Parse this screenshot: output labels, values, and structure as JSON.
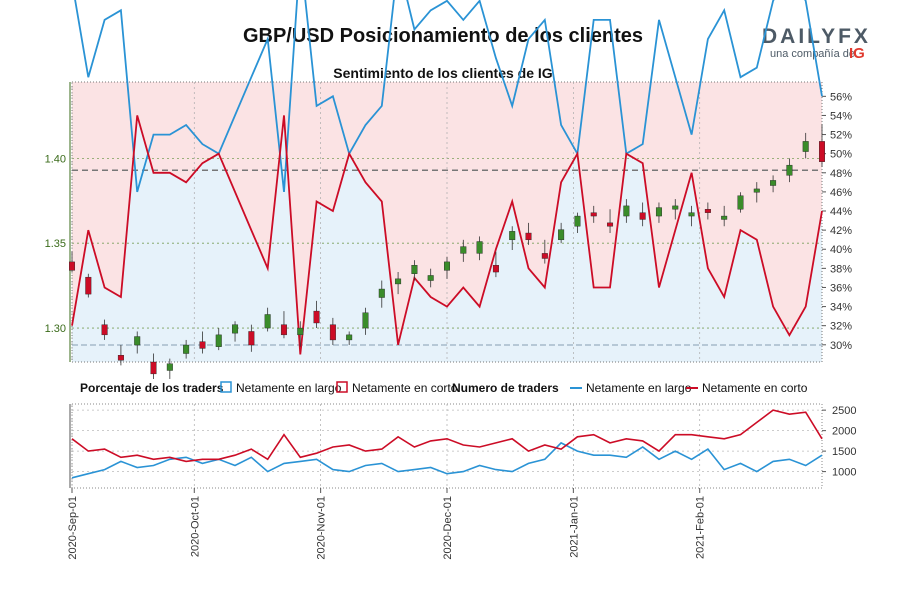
{
  "header": {
    "title": "GBP/USD Posicionamiento de los clientes",
    "logo_text": "DAILYFX",
    "logo_sub": "una compañía de",
    "logo_ig": "IG"
  },
  "colors": {
    "long": "#2a93d5",
    "short": "#cc0c26",
    "long_fill": "#e6f2fa",
    "short_fill": "#fbe3e4",
    "candle_up": "#3a8c2a",
    "candle_down": "#cc0c26",
    "price_axis": "#3a6b1a"
  },
  "chart_data": [
    {
      "type": "line",
      "title": "Sentimiento de los clientes de IG",
      "price_axis_ticks": [
        "1.30",
        "1.35",
        "1.40"
      ],
      "price_ylim": [
        1.28,
        1.445
      ],
      "pct_axis_ticks": [
        "30%",
        "32%",
        "34%",
        "36%",
        "38%",
        "40%",
        "42%",
        "44%",
        "46%",
        "48%",
        "50%",
        "52%",
        "54%",
        "56%"
      ],
      "pct_ylim": [
        28.2,
        57.5
      ],
      "reference_lines": {
        "price_upper": 1.393,
        "price_lower": 1.29
      },
      "x": [
        "2020-09-01",
        "2020-09-05",
        "2020-09-08",
        "2020-09-12",
        "2020-09-16",
        "2020-09-20",
        "2020-09-24",
        "2020-09-28",
        "2020-10-01",
        "2020-10-05",
        "2020-10-09",
        "2020-10-13",
        "2020-10-17",
        "2020-10-21",
        "2020-10-25",
        "2020-10-29",
        "2020-11-01",
        "2020-11-05",
        "2020-11-09",
        "2020-11-13",
        "2020-11-17",
        "2020-11-21",
        "2020-11-25",
        "2020-11-29",
        "2020-12-01",
        "2020-12-05",
        "2020-12-09",
        "2020-12-13",
        "2020-12-17",
        "2020-12-21",
        "2020-12-25",
        "2020-12-29",
        "2021-01-01",
        "2021-01-05",
        "2021-01-09",
        "2021-01-13",
        "2021-01-17",
        "2021-01-21",
        "2021-01-25",
        "2021-01-29",
        "2021-02-01",
        "2021-02-05",
        "2021-02-09",
        "2021-02-13",
        "2021-02-17",
        "2021-02-21",
        "2021-02-25"
      ],
      "series": [
        {
          "name": "Netamente en corto",
          "values": [
            32,
            42,
            36,
            35,
            54,
            48,
            48,
            47,
            49,
            50,
            46,
            42,
            38,
            54,
            29,
            45,
            44,
            50,
            47,
            45,
            30,
            37,
            35,
            34,
            36,
            34,
            40,
            45,
            38,
            36,
            47,
            50,
            36,
            36,
            50,
            49,
            36,
            42,
            48,
            38,
            35,
            42,
            41,
            34,
            31,
            34,
            44
          ]
        },
        {
          "name": "Netamente en largo",
          "values": [
            68,
            58,
            64,
            65,
            46,
            52,
            52,
            53,
            51,
            50,
            54,
            58,
            62,
            46,
            71,
            55,
            56,
            50,
            53,
            55,
            70,
            63,
            65,
            66,
            64,
            66,
            60,
            55,
            62,
            64,
            53,
            50,
            64,
            64,
            50,
            51,
            64,
            58,
            52,
            62,
            65,
            58,
            59,
            66,
            69,
            66,
            56
          ]
        }
      ],
      "candles": [
        [
          1.339,
          1.345,
          1.333,
          1.334
        ],
        [
          1.33,
          1.332,
          1.318,
          1.32
        ],
        [
          1.302,
          1.305,
          1.293,
          1.296
        ],
        [
          1.284,
          1.29,
          1.278,
          1.281
        ],
        [
          1.29,
          1.298,
          1.285,
          1.295
        ],
        [
          1.28,
          1.285,
          1.27,
          1.273
        ],
        [
          1.275,
          1.282,
          1.27,
          1.279
        ],
        [
          1.285,
          1.293,
          1.282,
          1.29
        ],
        [
          1.292,
          1.298,
          1.285,
          1.288
        ],
        [
          1.289,
          1.3,
          1.287,
          1.296
        ],
        [
          1.297,
          1.304,
          1.292,
          1.302
        ],
        [
          1.298,
          1.302,
          1.286,
          1.29
        ],
        [
          1.3,
          1.312,
          1.298,
          1.308
        ],
        [
          1.302,
          1.31,
          1.294,
          1.296
        ],
        [
          1.296,
          1.304,
          1.289,
          1.3
        ],
        [
          1.31,
          1.316,
          1.3,
          1.303
        ],
        [
          1.302,
          1.306,
          1.29,
          1.293
        ],
        [
          1.293,
          1.298,
          1.29,
          1.296
        ],
        [
          1.3,
          1.312,
          1.296,
          1.309
        ],
        [
          1.318,
          1.328,
          1.312,
          1.323
        ],
        [
          1.326,
          1.333,
          1.32,
          1.329
        ],
        [
          1.332,
          1.34,
          1.328,
          1.337
        ],
        [
          1.328,
          1.335,
          1.324,
          1.331
        ],
        [
          1.334,
          1.342,
          1.329,
          1.339
        ],
        [
          1.344,
          1.352,
          1.339,
          1.348
        ],
        [
          1.344,
          1.354,
          1.34,
          1.351
        ],
        [
          1.337,
          1.345,
          1.33,
          1.333
        ],
        [
          1.352,
          1.36,
          1.346,
          1.357
        ],
        [
          1.356,
          1.362,
          1.349,
          1.352
        ],
        [
          1.344,
          1.352,
          1.338,
          1.341
        ],
        [
          1.352,
          1.362,
          1.35,
          1.358
        ],
        [
          1.36,
          1.368,
          1.356,
          1.366
        ],
        [
          1.368,
          1.372,
          1.362,
          1.366
        ],
        [
          1.362,
          1.37,
          1.356,
          1.36
        ],
        [
          1.366,
          1.376,
          1.362,
          1.372
        ],
        [
          1.368,
          1.374,
          1.36,
          1.364
        ],
        [
          1.366,
          1.374,
          1.362,
          1.371
        ],
        [
          1.37,
          1.376,
          1.364,
          1.372
        ],
        [
          1.366,
          1.372,
          1.36,
          1.368
        ],
        [
          1.37,
          1.374,
          1.364,
          1.368
        ],
        [
          1.364,
          1.372,
          1.36,
          1.366
        ],
        [
          1.37,
          1.38,
          1.368,
          1.378
        ],
        [
          1.38,
          1.386,
          1.374,
          1.382
        ],
        [
          1.384,
          1.39,
          1.38,
          1.387
        ],
        [
          1.39,
          1.4,
          1.386,
          1.396
        ],
        [
          1.404,
          1.415,
          1.4,
          1.41
        ],
        [
          1.41,
          1.42,
          1.395,
          1.398
        ]
      ]
    },
    {
      "type": "line",
      "title": "Numero de traders",
      "ticks": [
        "1000",
        "1500",
        "2000",
        "2500"
      ],
      "ylim": [
        600,
        2650
      ],
      "series": [
        {
          "name": "Netamente en largo",
          "values": [
            850,
            950,
            1050,
            1250,
            1100,
            1150,
            1300,
            1350,
            1200,
            1300,
            1150,
            1350,
            1000,
            1200,
            1250,
            1300,
            1050,
            1000,
            1150,
            1200,
            1000,
            1050,
            1100,
            950,
            1000,
            1150,
            1050,
            1000,
            1200,
            1300,
            1700,
            1500,
            1400,
            1400,
            1350,
            1600,
            1300,
            1500,
            1300,
            1550,
            1050,
            1200,
            1000,
            1250,
            1300,
            1150,
            1400
          ]
        },
        {
          "name": "Netamente en corto",
          "values": [
            1800,
            1500,
            1550,
            1350,
            1400,
            1300,
            1350,
            1250,
            1300,
            1300,
            1400,
            1550,
            1300,
            1900,
            1350,
            1450,
            1600,
            1650,
            1500,
            1550,
            1850,
            1600,
            1750,
            1800,
            1650,
            1600,
            1700,
            1800,
            1500,
            1650,
            1550,
            1850,
            1900,
            1700,
            1800,
            1750,
            1500,
            1900,
            1900,
            1850,
            1800,
            1900,
            2200,
            2500,
            2400,
            2450,
            1800
          ]
        }
      ]
    }
  ],
  "legend": {
    "section1": "Porcentaje de los traders",
    "long": "Netamente en largo",
    "short": "Netamente en corto",
    "section2": "Numero de traders",
    "long2": "Netamente en largo",
    "short2": "Netamente en corto"
  },
  "x_axis": {
    "labels": [
      "2020-Sep-01",
      "2020-Oct-01",
      "2020-Nov-01",
      "2020-Dec-01",
      "2021-Jan-01",
      "2021-Feb-01"
    ]
  }
}
